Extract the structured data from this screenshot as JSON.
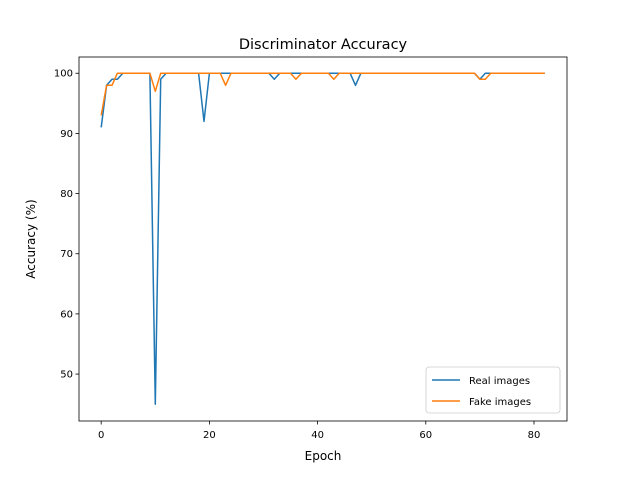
{
  "chart_data": {
    "type": "line",
    "title": "Discriminator Accuracy",
    "xlabel": "Epoch",
    "ylabel": "Accuracy (%)",
    "xlim": [
      -4.1,
      86.1
    ],
    "ylim": [
      42.2,
      102.7
    ],
    "xticks": [
      0,
      20,
      40,
      60,
      80
    ],
    "yticks": [
      50,
      60,
      70,
      80,
      90,
      100
    ],
    "grid": false,
    "legend_position": "lower right",
    "series": [
      {
        "name": "Real images",
        "color": "#1f77b4",
        "values": [
          91,
          98,
          99,
          99,
          100,
          100,
          100,
          100,
          100,
          100,
          45,
          99,
          100,
          100,
          100,
          100,
          100,
          100,
          100,
          92,
          100,
          100,
          100,
          100,
          100,
          100,
          100,
          100,
          100,
          100,
          100,
          100,
          99,
          100,
          100,
          100,
          100,
          100,
          100,
          100,
          100,
          100,
          100,
          100,
          100,
          100,
          100,
          98,
          100,
          100,
          100,
          100,
          100,
          100,
          100,
          100,
          100,
          100,
          100,
          100,
          100,
          100,
          100,
          100,
          100,
          100,
          100,
          100,
          100,
          100,
          99,
          100,
          100,
          100,
          100,
          100,
          100,
          100,
          100,
          100,
          100,
          100,
          100
        ]
      },
      {
        "name": "Fake images",
        "color": "#ff7f0e",
        "values": [
          93,
          98,
          98,
          100,
          100,
          100,
          100,
          100,
          100,
          100,
          97,
          100,
          100,
          100,
          100,
          100,
          100,
          100,
          100,
          100,
          100,
          100,
          100,
          98,
          100,
          100,
          100,
          100,
          100,
          100,
          100,
          100,
          100,
          100,
          100,
          100,
          99,
          100,
          100,
          100,
          100,
          100,
          100,
          99,
          100,
          100,
          100,
          100,
          100,
          100,
          100,
          100,
          100,
          100,
          100,
          100,
          100,
          100,
          100,
          100,
          100,
          100,
          100,
          100,
          100,
          100,
          100,
          100,
          100,
          100,
          99,
          99,
          100,
          100,
          100,
          100,
          100,
          100,
          100,
          100,
          100,
          100,
          100
        ]
      }
    ]
  }
}
